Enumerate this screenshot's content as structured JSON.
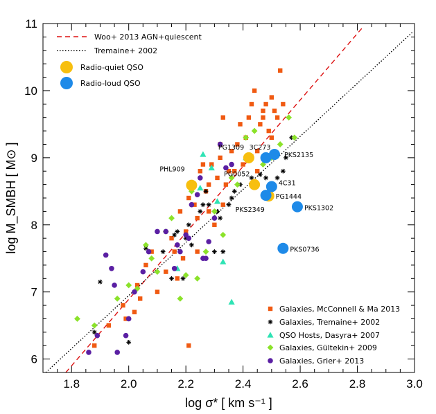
{
  "chart_data": {
    "type": "scatter",
    "xlabel": "log σ* [ km s⁻¹ ]",
    "ylabel": "log M_SMBH [ M⊙ ]",
    "xlim": [
      1.7,
      3.0
    ],
    "ylim": [
      5.8,
      11.0
    ],
    "xticks": [
      "1.8",
      "2.0",
      "2.2",
      "2.4",
      "2.6",
      "2.8",
      "3.0"
    ],
    "yticks": [
      "6",
      "7",
      "8",
      "9",
      "10",
      "11"
    ],
    "grid": false,
    "lines": [
      {
        "name": "Woo+ 2013 AGN+quiescent",
        "style": "dashed",
        "color": "#dd1111",
        "x": [
          1.78,
          2.82
        ],
        "y": [
          5.8,
          10.95
        ]
      },
      {
        "name": "Tremaine+ 2002",
        "style": "dotted",
        "color": "#000000",
        "x": [
          1.71,
          2.995
        ],
        "y": [
          5.8,
          10.88
        ]
      }
    ],
    "legend_top": [
      {
        "label": "Woo+ 2013 AGN+quiescent",
        "kind": "dashed-line",
        "color": "#dd1111"
      },
      {
        "label": "Tremaine+ 2002",
        "kind": "dotted-line",
        "color": "#000000"
      },
      {
        "label": "Radio-quiet QSO",
        "kind": "big-circle",
        "color": "#f7bf0f"
      },
      {
        "label": "Radio-loud QSO",
        "kind": "big-circle",
        "color": "#1e8ae8"
      }
    ],
    "legend_bottom": [
      {
        "label": "Galaxies, McConnell & Ma 2013",
        "kind": "square",
        "color": "#f05a12"
      },
      {
        "label": "Galaxies, Tremaine+ 2002",
        "kind": "asterisk",
        "color": "#000000"
      },
      {
        "label": "QSO Hosts, Dasyra+ 2007",
        "kind": "triangle",
        "color": "#2ee3b4"
      },
      {
        "label": "Galaxies, Gültekin+ 2009",
        "kind": "diamond",
        "color": "#8be22a"
      },
      {
        "label": "Galaxies, Grier+ 2013",
        "kind": "circle",
        "color": "#5a1fa3"
      }
    ],
    "series": [
      {
        "name": "Galaxies, McConnell & Ma 2013",
        "marker": "square",
        "color": "#f05a12",
        "x": [
          1.88,
          1.98,
          1.99,
          2.03,
          2.04,
          2.06,
          2.08,
          2.1,
          2.13,
          2.15,
          2.16,
          2.18,
          2.2,
          2.21,
          2.22,
          2.23,
          2.24,
          2.25,
          2.26,
          2.27,
          2.28,
          2.28,
          2.29,
          2.3,
          2.31,
          2.32,
          2.32,
          2.33,
          2.34,
          2.35,
          2.36,
          2.37,
          2.38,
          2.39,
          2.4,
          2.41,
          2.42,
          2.43,
          2.44,
          2.45,
          2.46,
          2.47,
          2.48,
          2.49,
          2.5,
          2.51,
          2.52,
          2.53,
          2.54,
          2.17,
          2.19,
          2.21,
          1.93,
          2.02,
          2.24,
          2.33,
          2.45,
          2.47,
          2.5
        ],
        "y": [
          6.2,
          6.8,
          6.6,
          7.1,
          6.9,
          7.4,
          7.6,
          7.0,
          7.3,
          7.8,
          7.6,
          8.2,
          7.9,
          8.4,
          8.6,
          8.3,
          8.1,
          8.8,
          8.9,
          8.5,
          8.2,
          8.6,
          8.9,
          8.0,
          8.7,
          9.2,
          9.0,
          9.6,
          8.6,
          8.8,
          9.1,
          8.8,
          9.2,
          9.5,
          8.9,
          9.3,
          9.6,
          9.8,
          10.0,
          9.1,
          9.5,
          9.6,
          9.8,
          9.4,
          9.9,
          9.7,
          9.6,
          10.3,
          9.8,
          7.2,
          7.5,
          6.2,
          6.5,
          6.7,
          7.6,
          8.3,
          8.8,
          9.7,
          9.3
        ]
      },
      {
        "name": "Galaxies, Tremaine+ 2002",
        "marker": "asterisk",
        "color": "#000000",
        "x": [
          1.88,
          1.9,
          2.0,
          2.06,
          2.12,
          2.15,
          2.16,
          2.17,
          2.19,
          2.2,
          2.21,
          2.22,
          2.25,
          2.26,
          2.27,
          2.28,
          2.3,
          2.31,
          2.32,
          2.33,
          2.35,
          2.36,
          2.37,
          2.39,
          2.43,
          2.46,
          2.48,
          2.5,
          2.52,
          2.54,
          2.55,
          2.57
        ],
        "y": [
          6.4,
          7.15,
          6.25,
          7.65,
          7.6,
          7.2,
          7.85,
          7.9,
          7.2,
          7.8,
          8.0,
          7.7,
          8.2,
          8.3,
          8.5,
          8.3,
          7.6,
          8.2,
          8.1,
          7.6,
          8.3,
          8.4,
          8.5,
          8.6,
          8.7,
          8.75,
          8.7,
          8.6,
          8.7,
          8.8,
          9.0,
          9.3
        ]
      },
      {
        "name": "QSO Hosts, Dasyra+ 2007",
        "marker": "triangle",
        "color": "#2ee3b4",
        "x": [
          2.26,
          2.31,
          2.33,
          2.17,
          2.25,
          2.36,
          2.29,
          2.41
        ],
        "y": [
          9.05,
          8.35,
          7.45,
          7.35,
          8.55,
          6.85,
          8.85,
          9.0
        ]
      },
      {
        "name": "Galaxies, Gültekin+ 2009",
        "marker": "diamond",
        "color": "#8be22a",
        "x": [
          1.82,
          1.88,
          1.96,
          2.0,
          2.03,
          2.06,
          2.08,
          2.1,
          2.13,
          2.15,
          2.18,
          2.2,
          2.22,
          2.24,
          2.27,
          2.3,
          2.33,
          2.36,
          2.38,
          2.41,
          2.44,
          2.47,
          2.5,
          2.53,
          2.56,
          2.58
        ],
        "y": [
          6.6,
          6.5,
          6.9,
          7.1,
          7.05,
          7.7,
          7.5,
          7.3,
          7.9,
          8.1,
          6.9,
          7.25,
          8.5,
          7.2,
          7.6,
          8.2,
          7.85,
          8.7,
          8.6,
          9.3,
          9.4,
          8.9,
          9.0,
          9.2,
          9.6,
          9.3
        ]
      },
      {
        "name": "Galaxies, Grier+ 2013",
        "marker": "circle",
        "color": "#5a1fa3",
        "x": [
          1.86,
          1.89,
          1.92,
          1.94,
          1.95,
          1.96,
          1.99,
          2.0,
          2.02,
          2.05,
          2.07,
          2.1,
          2.13,
          2.16,
          2.18,
          2.2,
          2.22,
          2.24,
          2.26,
          2.28,
          2.3,
          2.32,
          2.34,
          2.36,
          2.25,
          2.27,
          2.17,
          2.21
        ],
        "y": [
          6.1,
          6.35,
          7.55,
          7.35,
          7.1,
          6.1,
          6.35,
          6.6,
          7.0,
          7.3,
          7.6,
          7.9,
          7.9,
          7.35,
          7.6,
          7.85,
          8.3,
          8.45,
          7.5,
          7.75,
          8.1,
          9.2,
          8.85,
          8.9,
          8.7,
          7.5,
          7.7,
          7.8
        ]
      }
    ],
    "qso_points": [
      {
        "label": "PHL909",
        "type": "radio-quiet",
        "x": 2.22,
        "y": 8.59
      },
      {
        "label": "PG1309",
        "type": "radio-quiet",
        "x": 2.42,
        "y": 9.0
      },
      {
        "label": "PG0052",
        "type": "radio-quiet",
        "x": 2.44,
        "y": 8.6
      },
      {
        "label": "PG1444",
        "type": "radio-quiet",
        "x": 2.49,
        "y": 8.43
      },
      {
        "label": "3C273",
        "type": "radio-loud",
        "x": 2.48,
        "y": 9.0
      },
      {
        "label": "PKS2135",
        "type": "radio-loud",
        "x": 2.51,
        "y": 9.05
      },
      {
        "label": "4C31",
        "type": "radio-loud",
        "x": 2.5,
        "y": 8.57
      },
      {
        "label": "PKS2349",
        "type": "radio-loud",
        "x": 2.48,
        "y": 8.44
      },
      {
        "label": "PKS1302",
        "type": "radio-loud",
        "x": 2.59,
        "y": 8.27
      },
      {
        "label": "PKS0736",
        "type": "radio-loud",
        "x": 2.54,
        "y": 7.65
      }
    ],
    "colors": {
      "radio_quiet": "#f7bf0f",
      "radio_loud": "#1e8ae8"
    }
  }
}
